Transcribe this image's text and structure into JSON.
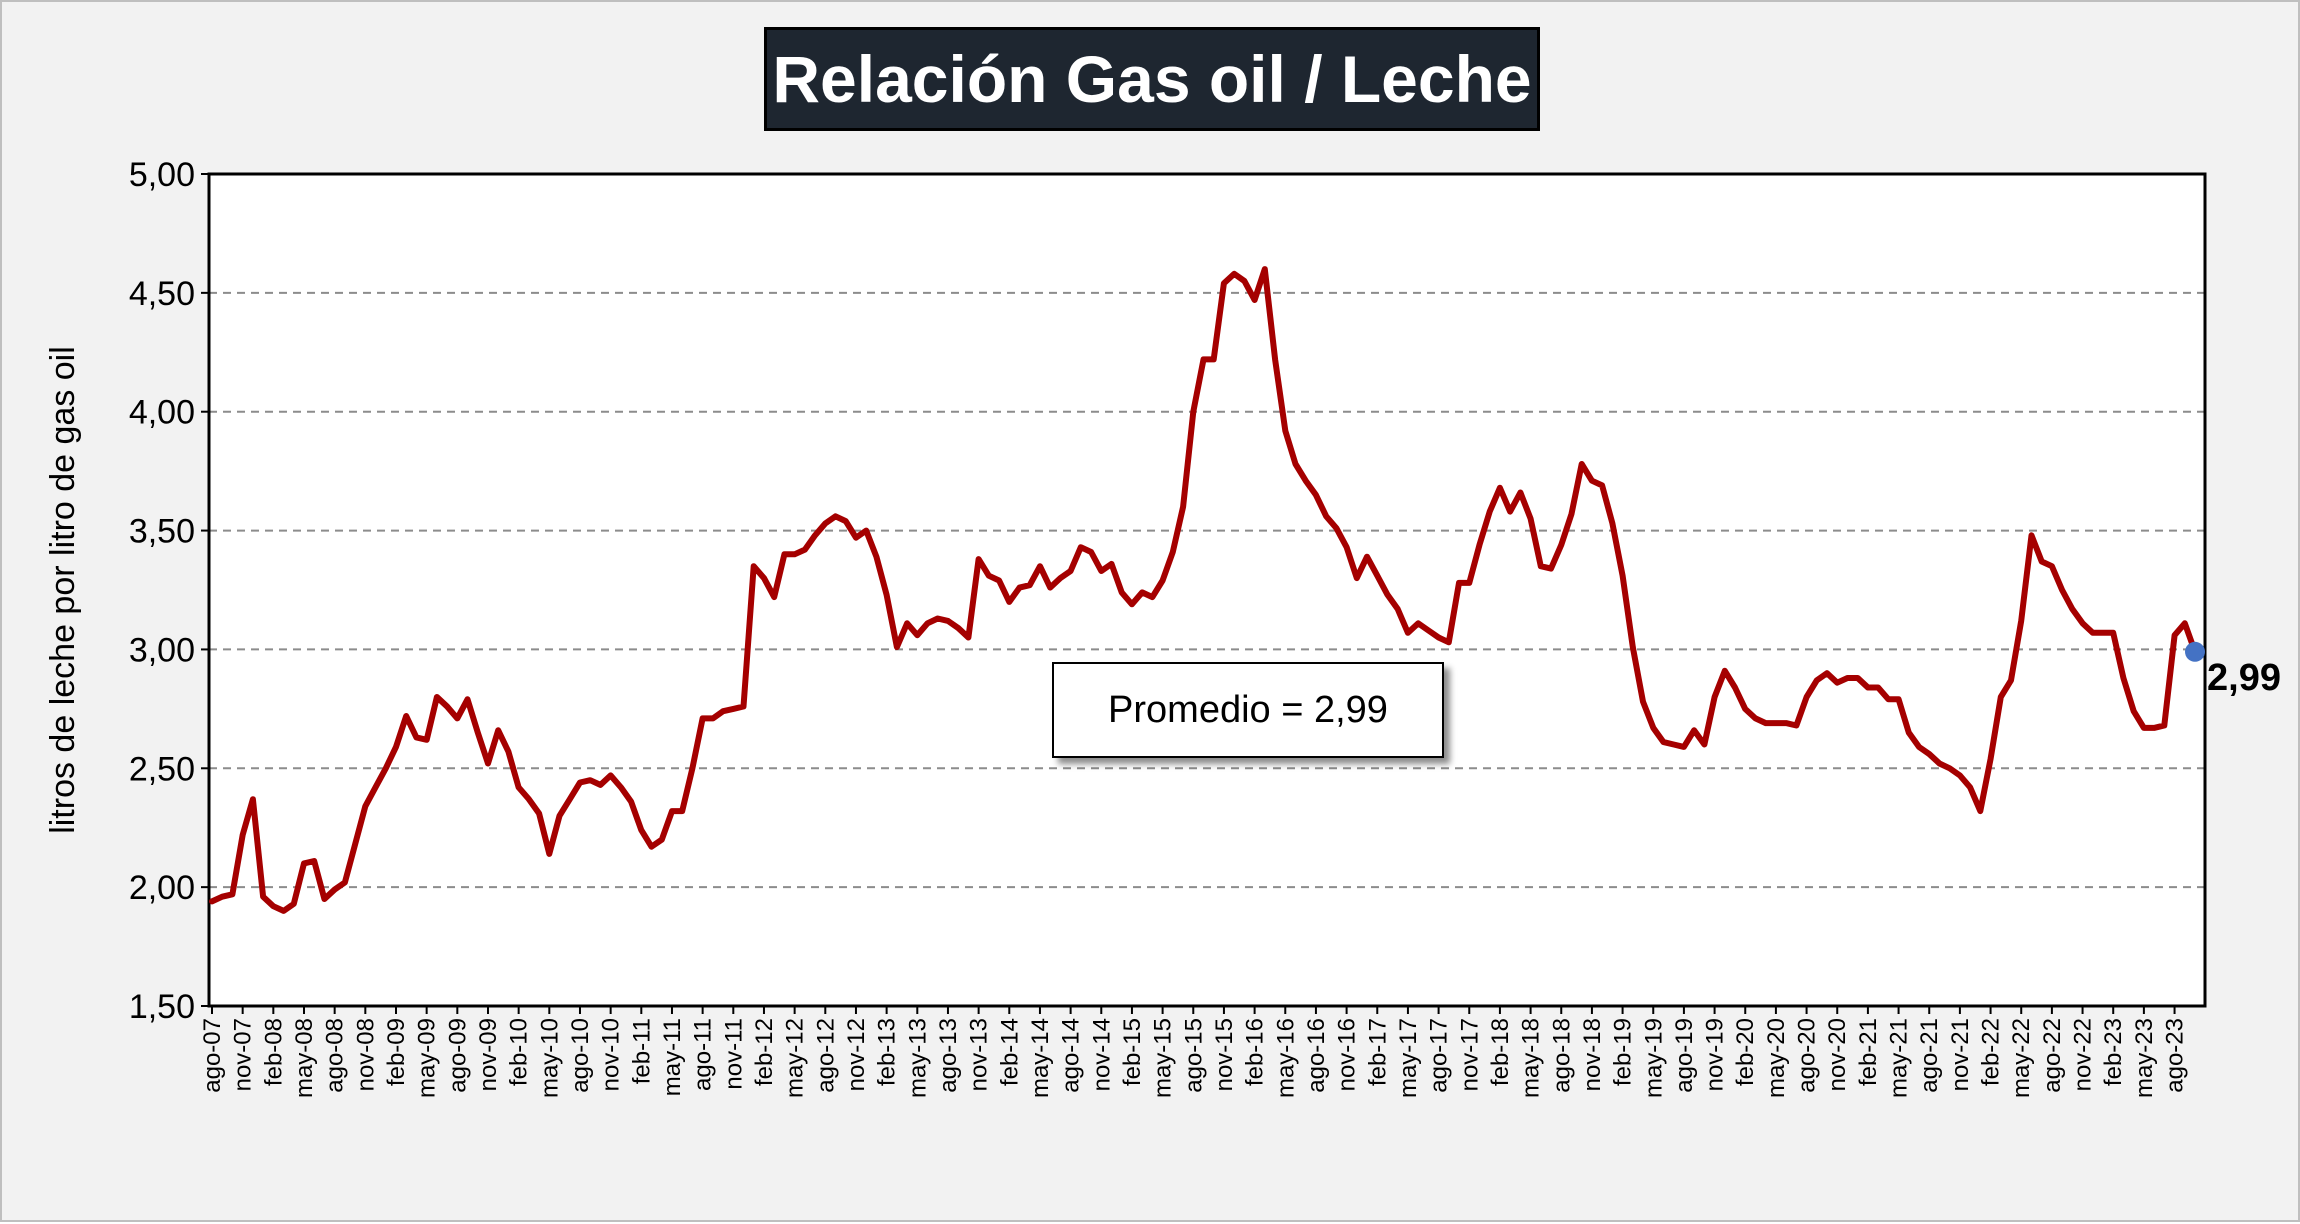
{
  "chart_data": {
    "type": "line",
    "title": "Relación Gas oil / Leche",
    "xlabel": "",
    "ylabel": "litros de leche por litro de gas oil",
    "ylim": [
      1.5,
      5.0
    ],
    "yticks": [
      "1,50",
      "2,00",
      "2,50",
      "3,00",
      "3,50",
      "4,00",
      "4,50",
      "5,00"
    ],
    "grid": "horizontal dashed",
    "tick_labels": [
      "ago-07",
      "nov-07",
      "feb-08",
      "may-08",
      "ago-08",
      "nov-08",
      "feb-09",
      "may-09",
      "ago-09",
      "nov-09",
      "feb-10",
      "may-10",
      "ago-10",
      "nov-10",
      "feb-11",
      "may-11",
      "ago-11",
      "nov-11",
      "feb-12",
      "may-12",
      "ago-12",
      "nov-12",
      "feb-13",
      "may-13",
      "ago-13",
      "nov-13",
      "feb-14",
      "may-14",
      "ago-14",
      "nov-14",
      "feb-15",
      "may-15",
      "ago-15",
      "nov-15",
      "feb-16",
      "may-16",
      "ago-16",
      "nov-16",
      "feb-17",
      "may-17",
      "ago-17",
      "nov-17",
      "feb-18",
      "may-18",
      "ago-18",
      "nov-18",
      "feb-19",
      "may-19",
      "ago-19",
      "nov-19",
      "feb-20",
      "may-20",
      "ago-20",
      "nov-20",
      "feb-21",
      "may-21",
      "ago-21",
      "nov-21",
      "feb-22",
      "may-22",
      "ago-22",
      "nov-22",
      "feb-23",
      "may-23",
      "ago-23"
    ],
    "x_start": "ago-07",
    "x_end": "dic-23",
    "series": [
      {
        "color": "#a50000",
        "values": [
          1.94,
          1.96,
          1.97,
          2.22,
          2.37,
          1.96,
          1.92,
          1.9,
          1.93,
          2.1,
          2.11,
          1.95,
          1.99,
          2.02,
          2.18,
          2.34,
          2.42,
          2.5,
          2.59,
          2.72,
          2.63,
          2.62,
          2.8,
          2.76,
          2.71,
          2.79,
          2.65,
          2.52,
          2.66,
          2.57,
          2.42,
          2.37,
          2.31,
          2.14,
          2.3,
          2.37,
          2.44,
          2.45,
          2.43,
          2.47,
          2.42,
          2.36,
          2.24,
          2.17,
          2.2,
          2.32,
          2.32,
          2.5,
          2.71,
          2.71,
          2.74,
          2.75,
          2.76,
          3.35,
          3.3,
          3.22,
          3.4,
          3.4,
          3.42,
          3.48,
          3.53,
          3.56,
          3.54,
          3.47,
          3.5,
          3.39,
          3.23,
          3.01,
          3.11,
          3.06,
          3.11,
          3.13,
          3.12,
          3.09,
          3.05,
          3.38,
          3.31,
          3.29,
          3.2,
          3.26,
          3.27,
          3.35,
          3.26,
          3.3,
          3.33,
          3.43,
          3.41,
          3.33,
          3.36,
          3.24,
          3.19,
          3.24,
          3.22,
          3.29,
          3.41,
          3.6,
          4.0,
          4.22,
          4.22,
          4.54,
          4.58,
          4.55,
          4.47,
          4.6,
          4.22,
          3.92,
          3.78,
          3.71,
          3.65,
          3.56,
          3.51,
          3.43,
          3.3,
          3.39,
          3.31,
          3.23,
          3.17,
          3.07,
          3.11,
          3.08,
          3.05,
          3.03,
          3.28,
          3.28,
          3.44,
          3.58,
          3.68,
          3.58,
          3.66,
          3.55,
          3.35,
          3.34,
          3.44,
          3.57,
          3.78,
          3.71,
          3.69,
          3.53,
          3.31,
          3.01,
          2.78,
          2.67,
          2.61,
          2.6,
          2.59,
          2.66,
          2.6,
          2.8,
          2.91,
          2.84,
          2.75,
          2.71,
          2.69,
          2.69,
          2.69,
          2.68,
          2.8,
          2.87,
          2.9,
          2.86,
          2.88,
          2.88,
          2.84,
          2.84,
          2.79,
          2.79,
          2.65,
          2.59,
          2.56,
          2.52,
          2.5,
          2.47,
          2.42,
          2.32,
          2.54,
          2.8,
          2.87,
          3.12,
          3.48,
          3.37,
          3.35,
          3.25,
          3.17,
          3.11,
          3.07,
          3.07,
          3.07,
          2.88,
          2.74,
          2.67,
          2.67,
          2.68,
          3.06,
          3.11,
          2.99
        ]
      }
    ],
    "last_value": 2.99,
    "last_value_label": "2,99",
    "last_point_color": "#4472c4",
    "annotation": "Promedio = 2,99"
  }
}
